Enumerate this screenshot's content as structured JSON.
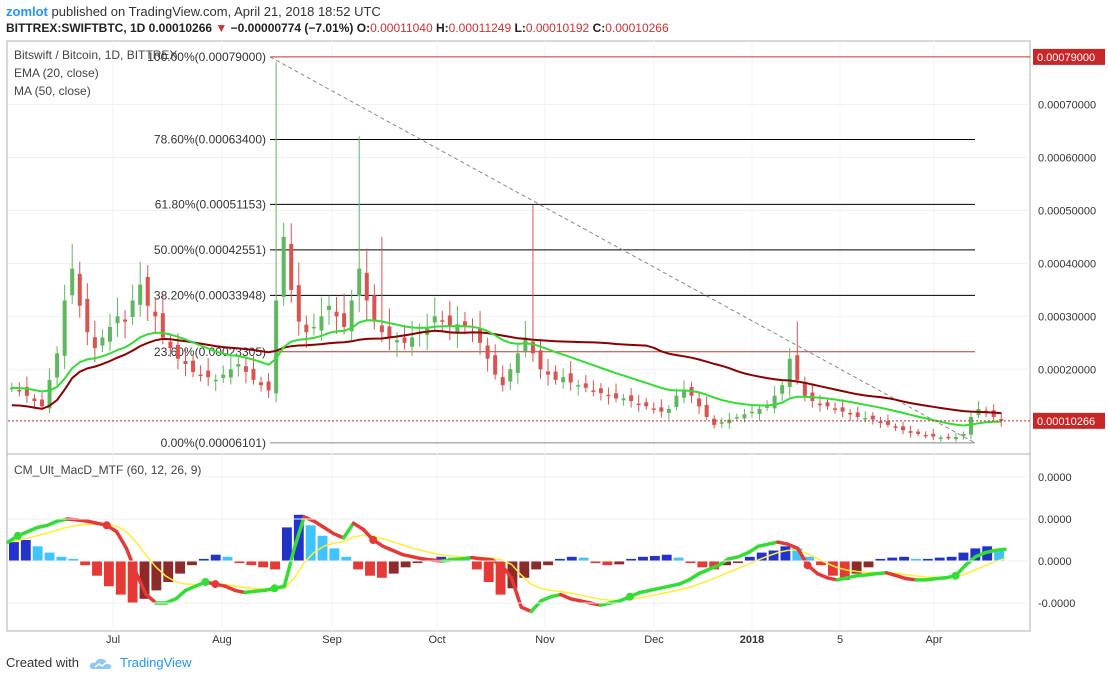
{
  "header": {
    "user": "zomlot",
    "published_text": " published on TradingView.com, April 21, 2018 18:52 UTC",
    "symbol": "BITTREX:SWIFTBTC, 1D",
    "price": "0.00010266",
    "change_arrow": "▼",
    "change": "−0.00000774 (−7.01%)",
    "o_label": "O:",
    "o_value": "0.00011040",
    "h_label": "H:",
    "h_value": "0.00011249",
    "l_label": "L:",
    "l_value": "0.00010192",
    "c_label": "C:",
    "c_value": "0.00010266"
  },
  "legend": {
    "title": "Bitswift / Bitcoin, 1D, BITTREX",
    "ema": "EMA (20, close)",
    "ma": "MA (50, close)",
    "macd": "CM_Ult_MacD_MTF (60, 12, 26, 9)"
  },
  "footer": {
    "created_with": "Created with",
    "brand": "TradingView"
  },
  "colors": {
    "up": "#5fb85f",
    "down": "#d9534f",
    "ema": "#33dd33",
    "ma": "#8b0000",
    "fib_line": "#000000",
    "fib_red": "#c0392b",
    "price_tag": "#c62828",
    "hist_blue": "#2233cc",
    "hist_cyan": "#40c4ff",
    "hist_red": "#e53935",
    "hist_maroon": "#8d2a2a",
    "signal": "#ffee33"
  },
  "chart_data": {
    "type": "candlestick",
    "x_ticks": [
      "Jul",
      "Aug",
      "Sep",
      "Oct",
      "Nov",
      "Dec",
      "2018",
      "5",
      "Apr"
    ],
    "y_ticks": [
      "0.00070000",
      "0.00060000",
      "0.00050000",
      "0.00040000",
      "0.00030000",
      "0.00020000"
    ],
    "ylim": [
      4e-05,
      0.00082
    ],
    "last_price": "0.00010266",
    "high_tag": "0.00079000",
    "fib_levels": [
      {
        "label": "100.00%(0.00079000)",
        "value": 0.00079
      },
      {
        "label": "78.60%(0.00063400)",
        "value": 0.000634
      },
      {
        "label": "61.80%(0.00051153)",
        "value": 0.00051153
      },
      {
        "label": "50.00%(0.00042551)",
        "value": 0.00042551
      },
      {
        "label": "38.20%(0.00033948)",
        "value": 0.00033948
      },
      {
        "label": "23.60%(0.00023305)",
        "value": 0.00023305
      },
      {
        "label": "0.00%(0.00006101)",
        "value": 6.101e-05
      }
    ],
    "close_path": [
      0.000165,
      0.00016,
      0.00015,
      0.00014,
      0.00013,
      0.00018,
      0.00023,
      0.00033,
      0.00039,
      0.00032,
      0.00027,
      0.00024,
      0.00026,
      0.00028,
      0.0003,
      0.00029,
      0.00033,
      0.00036,
      0.00032,
      0.0003,
      0.00026,
      0.00024,
      0.00022,
      0.00021,
      0.000195,
      0.00019,
      0.000185,
      0.00018,
      0.00019,
      0.0002,
      0.00021,
      0.000195,
      0.00018,
      0.00017,
      0.00016,
      0.00033,
      0.00045,
      0.00035,
      0.00029,
      0.00027,
      0.00028,
      0.0003,
      0.00032,
      0.0003,
      0.00028,
      0.00033,
      0.00039,
      0.00033,
      0.00029,
      0.00027,
      0.00026,
      0.000255,
      0.00025,
      0.00026,
      0.00027,
      0.00028,
      0.0003,
      0.00029,
      0.00028,
      0.000285,
      0.00028,
      0.00027,
      0.00025,
      0.00022,
      0.00019,
      0.00017,
      0.0002,
      0.00023,
      0.00026,
      0.00023,
      0.0002,
      0.00019,
      0.00018,
      0.000185,
      0.000175,
      0.00017,
      0.000165,
      0.00016,
      0.000155,
      0.00015,
      0.000145,
      0.000145,
      0.00014,
      0.000135,
      0.00013,
      0.000125,
      0.00012,
      0.000125,
      0.00015,
      0.00016,
      0.00015,
      0.00013,
      0.00011,
      9.5e-05,
      0.0001,
      0.000105,
      0.00011,
      0.000115,
      0.00012,
      0.000125,
      0.00013,
      0.00015,
      0.00017,
      0.00022,
      0.00018,
      0.00015,
      0.00014,
      0.000135,
      0.00013,
      0.000125,
      0.00012,
      0.000115,
      0.00011,
      0.000108,
      0.000105,
      0.0001,
      9.5e-05,
      9e-05,
      8.5e-05,
      8e-05,
      7.8e-05,
      7.5e-05,
      7.3e-05,
      7.1e-05,
      7e-05,
      7.2e-05,
      7.8e-05,
      0.00011,
      0.000125,
      0.000118,
      0.00011,
      0.000103
    ]
  },
  "macd_data": {
    "y_ticks": [
      "0.0000",
      "0.0000",
      "0.0000",
      "-0.0000"
    ],
    "macd_path": [
      0.45,
      0.6,
      0.7,
      0.8,
      0.85,
      0.95,
      1.0,
      0.98,
      0.95,
      0.9,
      0.85,
      0.7,
      0.3,
      -0.3,
      -0.8,
      -1.0,
      -1.0,
      -0.9,
      -0.7,
      -0.6,
      -0.5,
      -0.55,
      -0.6,
      -0.7,
      -0.75,
      -0.72,
      -0.7,
      -0.65,
      -0.6,
      0.3,
      1.05,
      0.95,
      0.8,
      0.65,
      0.55,
      0.9,
      0.75,
      0.5,
      0.35,
      0.25,
      0.15,
      0.1,
      0.05,
      0.02,
      0.0,
      0.03,
      0.05,
      0.08,
      0.05,
      0.03,
      -0.1,
      -0.4,
      -1.1,
      -1.2,
      -0.95,
      -0.85,
      -0.8,
      -0.9,
      -0.95,
      -1.0,
      -1.05,
      -1.0,
      -0.95,
      -0.85,
      -0.75,
      -0.7,
      -0.65,
      -0.6,
      -0.55,
      -0.45,
      -0.3,
      -0.2,
      -0.1,
      0.05,
      0.1,
      0.2,
      0.35,
      0.4,
      0.45,
      0.4,
      0.3,
      -0.1,
      -0.3,
      -0.4,
      -0.45,
      -0.4,
      -0.35,
      -0.33,
      -0.3,
      -0.28,
      -0.35,
      -0.42,
      -0.45,
      -0.45,
      -0.42,
      -0.4,
      -0.35,
      -0.1,
      0.1,
      0.2,
      0.25,
      0.28
    ],
    "hist": [
      0.45,
      0.5,
      0.35,
      0.2,
      0.1,
      0.05,
      -0.1,
      -0.35,
      -0.6,
      -0.8,
      -1.0,
      -0.9,
      -0.7,
      -0.5,
      -0.3,
      -0.1,
      0.05,
      0.15,
      0.1,
      -0.05,
      -0.1,
      -0.15,
      -0.2,
      0.8,
      1.1,
      0.85,
      0.6,
      0.3,
      0.1,
      -0.2,
      -0.35,
      -0.4,
      -0.3,
      -0.15,
      -0.05,
      0.05,
      0.1,
      0.08,
      0.05,
      -0.2,
      -0.5,
      -0.8,
      -0.65,
      -0.4,
      -0.2,
      -0.1,
      0.05,
      0.1,
      0.08,
      -0.05,
      -0.1,
      -0.08,
      0.05,
      0.1,
      0.12,
      0.15,
      0.08,
      -0.05,
      -0.15,
      -0.2,
      -0.1,
      -0.05,
      0.1,
      0.2,
      0.25,
      0.35,
      0.3,
      0.1,
      -0.1,
      -0.35,
      -0.45,
      -0.3,
      -0.15,
      0.05,
      0.08,
      0.1,
      0.05,
      0.05,
      0.08,
      0.1,
      0.2,
      0.3,
      0.35,
      0.25
    ]
  }
}
